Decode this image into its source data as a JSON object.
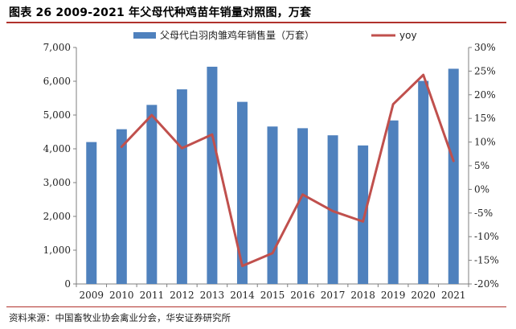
{
  "header": {
    "title": "图表 26 2009-2021 年父母代种鸡苗年销量对照图，万套"
  },
  "footer": {
    "source": "资料来源：中国畜牧业协会禽业分会，华安证券研究所"
  },
  "colors": {
    "bar": "#4f81bd",
    "line": "#c0504d",
    "accent_rule": "#b0322c",
    "axis": "#7f7f7f"
  },
  "chart_data": {
    "type": "bar",
    "title": "图表 26 2009-2021 年父母代种鸡苗年销量对照图，万套",
    "categories": [
      "2009",
      "2010",
      "2011",
      "2012",
      "2013",
      "2014",
      "2015",
      "2016",
      "2017",
      "2018",
      "2019",
      "2020",
      "2021"
    ],
    "series": [
      {
        "name": "父母代白羽肉雏鸡年销售量（万套）",
        "type": "bar",
        "axis": "left",
        "values": [
          4200,
          4580,
          5300,
          5760,
          6430,
          5390,
          4660,
          4610,
          4400,
          4100,
          4840,
          6010,
          6370
        ]
      },
      {
        "name": "yoy",
        "type": "line",
        "axis": "right",
        "values": [
          null,
          9.0,
          15.7,
          8.7,
          11.6,
          -16.2,
          -13.5,
          -1.1,
          -4.6,
          -6.8,
          18.0,
          24.2,
          6.0
        ]
      }
    ],
    "y_left": {
      "min": 0,
      "max": 7000,
      "step": 1000,
      "tick_labels": [
        "0",
        "1,000",
        "2,000",
        "3,000",
        "4,000",
        "5,000",
        "6,000",
        "7,000"
      ]
    },
    "y_right": {
      "min": -20,
      "max": 30,
      "step": 5,
      "tick_labels": [
        "-20%",
        "-15%",
        "-10%",
        "-5%",
        "0%",
        "5%",
        "10%",
        "15%",
        "20%",
        "25%",
        "30%"
      ]
    },
    "legend_position": "top",
    "grid": false
  }
}
